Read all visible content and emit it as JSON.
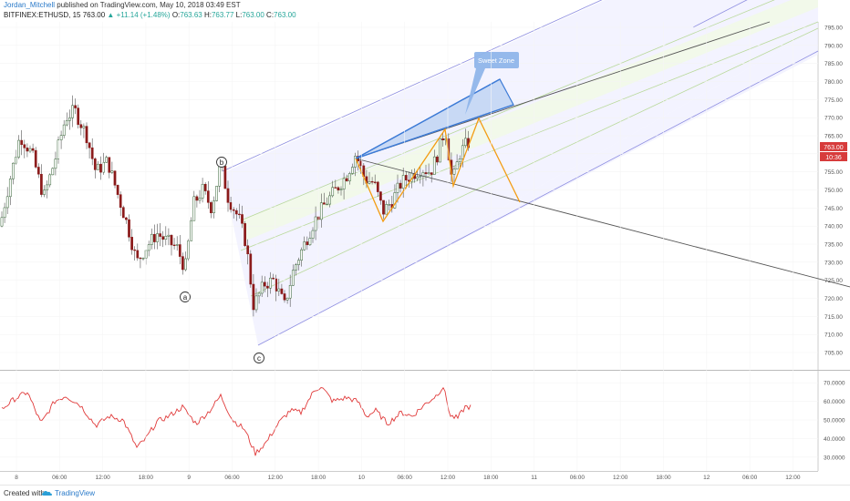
{
  "header": {
    "author": "Jordan_Mitchell",
    "published": "published on TradingView.com, May 10, 2018 03:49 EST",
    "symbol": "BITFINEX:ETHUSD, 15",
    "last": "763.00",
    "change": "+11.14 (+1.48%)",
    "o_label": "O:",
    "o_value": "763.63",
    "h_label": "H:",
    "h_value": "763.77",
    "l_label": "L:",
    "l_value": "763.00",
    "c_label": "C:",
    "c_value": "763.00"
  },
  "footer": {
    "created_with": "Created with",
    "brand": "TradingView",
    "icon": "tradingview-cloud-icon"
  },
  "colors": {
    "up": "#26a69a",
    "down": "#ef5350",
    "candle": "#3a3a3a",
    "bear_candle": "#8b1a1a",
    "channel": "#8c8ce0",
    "channel_fill": "#eeeeff",
    "midline": "#b9d99a",
    "wedge": "#3d7bd6",
    "wedge_fill": "#b9d0f2",
    "zigzag": "#f39c12",
    "trendline": "#555555",
    "oscillator": "#e03a3a",
    "price_tag": "#d73b3b"
  },
  "chart_data": {
    "type": "candlestick",
    "price_axis": {
      "range": [
        705,
        795
      ],
      "ticks": [
        "705.00",
        "710.00",
        "715.00",
        "720.00",
        "725.00",
        "730.00",
        "735.00",
        "740.00",
        "745.00",
        "750.00",
        "755.00",
        "760.00",
        "765.00",
        "770.00",
        "775.00",
        "780.00",
        "785.00",
        "790.00",
        "795.00"
      ],
      "last_price_tag": "763.00",
      "countdown_tag": "10:36"
    },
    "oscillator_axis": {
      "range": [
        25,
        75
      ],
      "ticks": [
        "30.0000",
        "40.0000",
        "50.0000",
        "60.0000",
        "70.0000"
      ]
    },
    "time_axis": {
      "ticks": [
        "8",
        "06:00",
        "12:00",
        "18:00",
        "9",
        "06:00",
        "12:00",
        "18:00",
        "10",
        "06:00",
        "12:00",
        "18:00",
        "11",
        "06:00",
        "12:00",
        "18:00",
        "12",
        "06:00",
        "12:00"
      ]
    },
    "wave_labels": [
      "a",
      "b",
      "c"
    ],
    "annotation": "Sweet Zone",
    "price_waypoints": [
      [
        0,
        740
      ],
      [
        10,
        752
      ],
      [
        22,
        765
      ],
      [
        35,
        760
      ],
      [
        48,
        748
      ],
      [
        60,
        758
      ],
      [
        72,
        770
      ],
      [
        82,
        772
      ],
      [
        95,
        765
      ],
      [
        105,
        755
      ],
      [
        118,
        758
      ],
      [
        130,
        748
      ],
      [
        140,
        740
      ],
      [
        150,
        730
      ],
      [
        160,
        734
      ],
      [
        172,
        738
      ],
      [
        182,
        736
      ],
      [
        194,
        734
      ],
      [
        203,
        728
      ],
      [
        212,
        746
      ],
      [
        222,
        750
      ],
      [
        232,
        745
      ],
      [
        242,
        757
      ],
      [
        250,
        748
      ],
      [
        262,
        742
      ],
      [
        270,
        735
      ],
      [
        278,
        718
      ],
      [
        290,
        724
      ],
      [
        300,
        725
      ],
      [
        312,
        718
      ],
      [
        322,
        728
      ],
      [
        332,
        734
      ],
      [
        344,
        741
      ],
      [
        356,
        746
      ],
      [
        368,
        750
      ],
      [
        380,
        754
      ],
      [
        390,
        760
      ],
      [
        400,
        753
      ],
      [
        410,
        752
      ],
      [
        420,
        744
      ],
      [
        430,
        747
      ],
      [
        440,
        752
      ],
      [
        450,
        754
      ],
      [
        462,
        756
      ],
      [
        472,
        755
      ],
      [
        480,
        760
      ],
      [
        488,
        767
      ],
      [
        496,
        752
      ],
      [
        504,
        760
      ],
      [
        512,
        763
      ],
      [
        516,
        763
      ]
    ],
    "oscillator_waypoints": [
      [
        0,
        55
      ],
      [
        15,
        61
      ],
      [
        30,
        65
      ],
      [
        45,
        48
      ],
      [
        60,
        60
      ],
      [
        72,
        63
      ],
      [
        88,
        58
      ],
      [
        105,
        47
      ],
      [
        120,
        52
      ],
      [
        135,
        50
      ],
      [
        150,
        35
      ],
      [
        160,
        40
      ],
      [
        172,
        49
      ],
      [
        185,
        52
      ],
      [
        200,
        57
      ],
      [
        215,
        48
      ],
      [
        230,
        55
      ],
      [
        242,
        63
      ],
      [
        255,
        50
      ],
      [
        268,
        45
      ],
      [
        280,
        32
      ],
      [
        292,
        38
      ],
      [
        305,
        48
      ],
      [
        318,
        55
      ],
      [
        330,
        54
      ],
      [
        345,
        66
      ],
      [
        352,
        68
      ],
      [
        365,
        60
      ],
      [
        380,
        62
      ],
      [
        392,
        60
      ],
      [
        402,
        52
      ],
      [
        412,
        55
      ],
      [
        425,
        48
      ],
      [
        440,
        54
      ],
      [
        452,
        52
      ],
      [
        465,
        58
      ],
      [
        478,
        63
      ],
      [
        486,
        68
      ],
      [
        494,
        52
      ],
      [
        502,
        51
      ],
      [
        510,
        57
      ],
      [
        516,
        57
      ]
    ]
  }
}
